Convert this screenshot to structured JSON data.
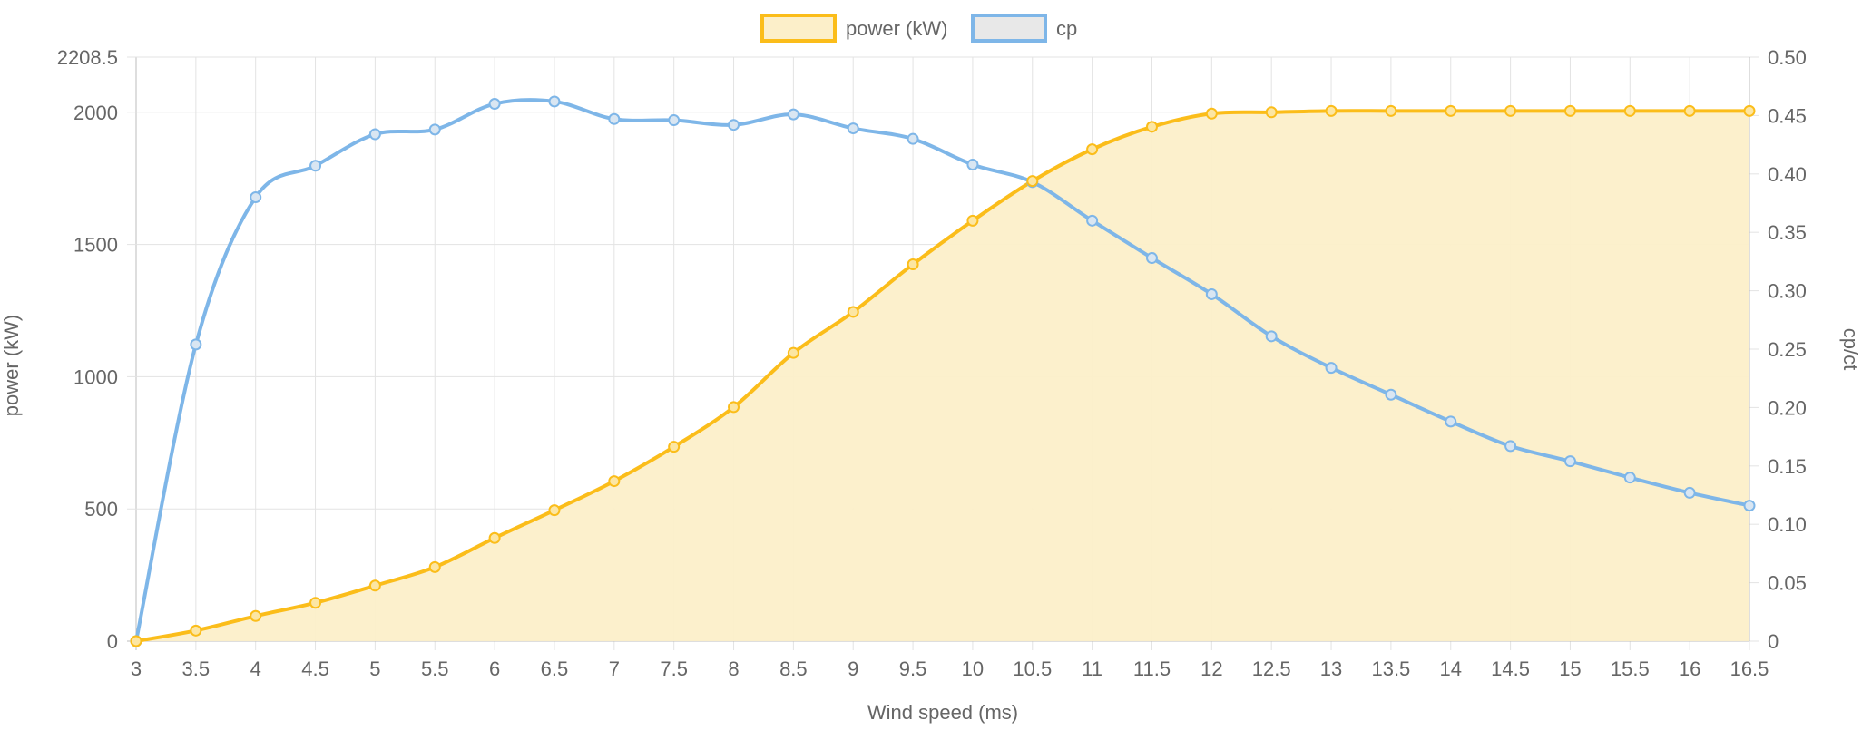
{
  "chart_data": {
    "type": "line",
    "xlabel": "Wind speed (ms)",
    "x": [
      3,
      3.5,
      4,
      4.5,
      5,
      5.5,
      6,
      6.5,
      7,
      7.5,
      8,
      8.5,
      9,
      9.5,
      10,
      10.5,
      11,
      11.5,
      12,
      12.5,
      13,
      13.5,
      14,
      14.5,
      15,
      15.5,
      16,
      16.5
    ],
    "y_left": {
      "label": "power (kW)",
      "ylim": [
        0,
        2208.5
      ],
      "ticks": [
        0,
        500,
        1000,
        1500,
        2000,
        2208.5
      ]
    },
    "y_right": {
      "label": "cp/ct",
      "ylim": [
        0,
        0.5
      ],
      "ticks": [
        0,
        0.05,
        0.1,
        0.15,
        0.2,
        0.25,
        0.3,
        0.35,
        0.4,
        0.45,
        0.5
      ]
    },
    "series": [
      {
        "name": "power (kW)",
        "axis": "left",
        "color": "#FBBD1A",
        "fill": "#FCEFC9",
        "filled": true,
        "values": [
          0,
          40,
          95,
          145,
          210,
          280,
          390,
          495,
          605,
          735,
          885,
          1090,
          1245,
          1425,
          1590,
          1740,
          1860,
          1945,
          1995,
          2000,
          2005,
          2005,
          2005,
          2005,
          2005,
          2005,
          2005,
          2005
        ]
      },
      {
        "name": "cp",
        "axis": "right",
        "color": "#7EB6E8",
        "fill": "#E8E8E8",
        "filled": false,
        "values": [
          0,
          0.254,
          0.38,
          0.407,
          0.434,
          0.438,
          0.46,
          0.462,
          0.447,
          0.446,
          0.442,
          0.451,
          0.439,
          0.43,
          0.408,
          0.393,
          0.36,
          0.328,
          0.297,
          0.261,
          0.234,
          0.211,
          0.188,
          0.167,
          0.154,
          0.14,
          0.127,
          0.116
        ]
      }
    ],
    "grid": true,
    "legend": "top-center"
  }
}
